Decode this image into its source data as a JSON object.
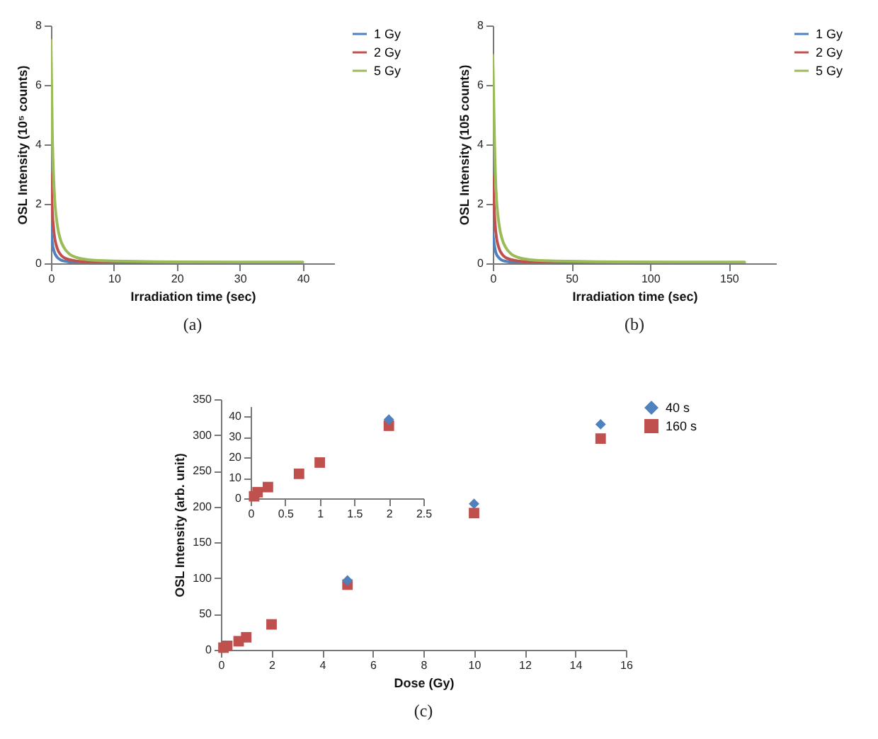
{
  "chart_data": [
    {
      "type": "line",
      "xlabel": "Irradiation time (sec)",
      "ylabel": "OSL Intensity (10⁵ counts)",
      "annotations": [
        "(a)"
      ],
      "xlim": [
        0,
        45
      ],
      "xticks": [
        0,
        10,
        20,
        30,
        40
      ],
      "ylim": [
        0,
        8
      ],
      "yticks": [
        0,
        2,
        4,
        6,
        8
      ],
      "legend": "right",
      "x": [
        0,
        0.2,
        0.5,
        1,
        1.5,
        2,
        3,
        4,
        5,
        7,
        10,
        15,
        20,
        30,
        40
      ],
      "series": [
        {
          "name": "1 Gy",
          "color": "#4f81bd",
          "values": [
            1.2,
            0.7,
            0.4,
            0.2,
            0.12,
            0.08,
            0.05,
            0.03,
            0.02,
            0.02,
            null,
            null,
            null,
            null,
            null
          ]
        },
        {
          "name": "2 Gy",
          "color": "#c0504d",
          "values": [
            3.0,
            1.8,
            1.0,
            0.5,
            0.3,
            0.2,
            0.12,
            0.08,
            0.06,
            0.05,
            0.04,
            0.03,
            0.03,
            null,
            null
          ]
        },
        {
          "name": "5 Gy",
          "color": "#9bbb59",
          "values": [
            7.5,
            4.5,
            2.5,
            1.3,
            0.8,
            0.55,
            0.3,
            0.2,
            0.15,
            0.1,
            0.08,
            0.06,
            0.05,
            0.04,
            0.04
          ]
        }
      ]
    },
    {
      "type": "line",
      "xlabel": "Irradiation time (sec)",
      "ylabel": "OSL Intensity (105 counts)",
      "annotations": [
        "(b)"
      ],
      "xlim": [
        0,
        180
      ],
      "xticks": [
        0,
        50,
        100,
        150
      ],
      "ylim": [
        0,
        8
      ],
      "yticks": [
        0,
        2,
        4,
        6,
        8
      ],
      "legend": "right",
      "x": [
        0,
        1,
        2,
        4,
        6,
        8,
        12,
        16,
        20,
        28,
        40,
        60,
        80,
        120,
        160
      ],
      "series": [
        {
          "name": "1 Gy",
          "color": "#4f81bd",
          "values": [
            1.0,
            0.6,
            0.35,
            0.18,
            0.1,
            0.07,
            0.04,
            0.03,
            0.02,
            0.02,
            null,
            null,
            null,
            null,
            null
          ]
        },
        {
          "name": "2 Gy",
          "color": "#c0504d",
          "values": [
            2.9,
            1.7,
            1.0,
            0.5,
            0.3,
            0.2,
            0.12,
            0.08,
            0.06,
            0.05,
            0.04,
            0.03,
            0.03,
            null,
            null
          ]
        },
        {
          "name": "5 Gy",
          "color": "#9bbb59",
          "values": [
            7.0,
            4.3,
            2.5,
            1.3,
            0.8,
            0.55,
            0.3,
            0.2,
            0.15,
            0.1,
            0.08,
            0.06,
            0.05,
            0.04,
            0.04
          ]
        }
      ]
    },
    {
      "type": "scatter",
      "xlabel": "Dose (Gy)",
      "ylabel": "OSL Intensity (arb. unit)",
      "annotations": [
        "(c)"
      ],
      "xlim": [
        0,
        16
      ],
      "xticks": [
        0,
        2,
        4,
        6,
        8,
        10,
        12,
        14,
        16
      ],
      "ylim": [
        0,
        350
      ],
      "yticks": [
        0,
        50,
        100,
        150,
        200,
        250,
        300,
        350
      ],
      "legend": "right",
      "x": [
        0.1,
        0.25,
        0.7,
        1,
        2,
        5,
        10,
        15
      ],
      "series": [
        {
          "name": "40 s",
          "color": "#4f81bd",
          "marker": "diamond",
          "values": [
            null,
            null,
            null,
            null,
            null,
            97,
            204,
            315
          ]
        },
        {
          "name": "160 s",
          "color": "#c0504d",
          "marker": "square",
          "values": [
            3,
            5.5,
            12,
            17.5,
            35.5,
            91,
            191,
            295
          ]
        }
      ]
    },
    {
      "type": "scatter",
      "xlim": [
        0,
        2.5
      ],
      "xticks": [
        0,
        0.5,
        1,
        1.5,
        2,
        2.5
      ],
      "ylim": [
        0,
        45
      ],
      "yticks": [
        0,
        10,
        20,
        30,
        40
      ],
      "x": [
        0.05,
        0.1,
        0.25,
        0.7,
        1,
        2
      ],
      "series": [
        {
          "color": "#4f81bd",
          "marker": "diamond",
          "values": [
            null,
            null,
            null,
            null,
            null,
            38.5
          ]
        },
        {
          "color": "#c0504d",
          "marker": "square",
          "values": [
            1,
            3,
            5.5,
            12,
            17.5,
            35.5
          ]
        }
      ]
    }
  ]
}
